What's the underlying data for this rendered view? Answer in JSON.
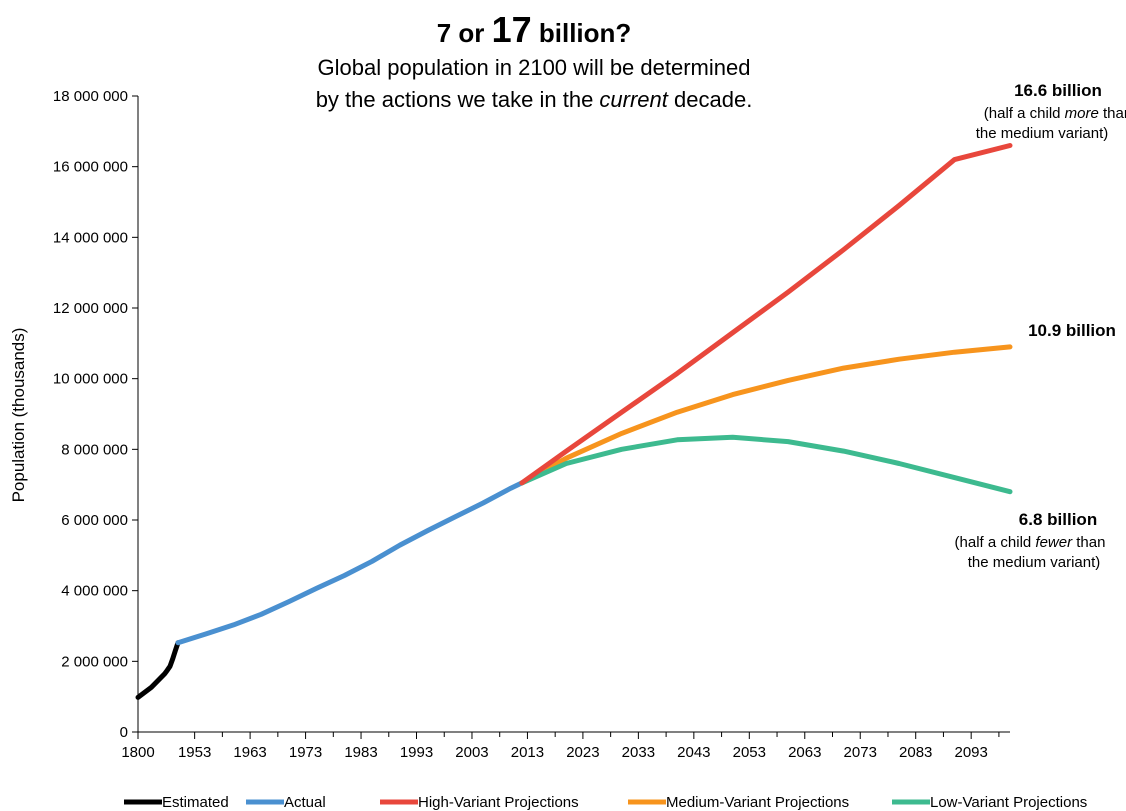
{
  "chart_data": {
    "type": "line",
    "title": {
      "prefix": "7 or ",
      "big": "17",
      "suffix": " billion?"
    },
    "subtitle": {
      "line1": "Global population in 2100 will be determined",
      "line2_pre": "by the actions we take in the ",
      "line2_em": "current",
      "line2_post": " decade."
    },
    "ylabel": "Population (thousands)",
    "xlabel": "",
    "ylim": [
      0,
      18000000
    ],
    "yticks": [
      {
        "value": 0,
        "label": "0"
      },
      {
        "value": 2000000,
        "label": "2 000 000"
      },
      {
        "value": 4000000,
        "label": "4 000 000"
      },
      {
        "value": 6000000,
        "label": "6 000 000"
      },
      {
        "value": 8000000,
        "label": "8 000 000"
      },
      {
        "value": 10000000,
        "label": "10 000 000"
      },
      {
        "value": 12000000,
        "label": "12 000 000"
      },
      {
        "value": 14000000,
        "label": "14 000 000"
      },
      {
        "value": 16000000,
        "label": "16 000 000"
      },
      {
        "value": 18000000,
        "label": "18 000 000"
      }
    ],
    "xtick_labels": [
      "1800",
      "1953",
      "1963",
      "1973",
      "1983",
      "1993",
      "2003",
      "2013",
      "2023",
      "2033",
      "2043",
      "2053",
      "2063",
      "2073",
      "2083",
      "2093"
    ],
    "xtick_years": [
      1800,
      1953,
      1963,
      1973,
      1983,
      1993,
      2003,
      2013,
      2023,
      2033,
      2043,
      2053,
      2063,
      2073,
      2083,
      2093
    ],
    "grid": false,
    "legend_position": "bottom",
    "series": [
      {
        "name": "Estimated",
        "color": "#000000",
        "points": [
          [
            1800,
            978000
          ],
          [
            1850,
            1262000
          ],
          [
            1900,
            1650000
          ],
          [
            1910,
            1750000
          ],
          [
            1920,
            1860000
          ],
          [
            1930,
            2070000
          ],
          [
            1940,
            2300000
          ],
          [
            1950,
            2526000
          ]
        ]
      },
      {
        "name": "Actual",
        "color": "#4a90d0",
        "points": [
          [
            1950,
            2526000
          ],
          [
            1955,
            2773000
          ],
          [
            1960,
            3030000
          ],
          [
            1965,
            3330000
          ],
          [
            1970,
            3690000
          ],
          [
            1975,
            4070000
          ],
          [
            1980,
            4430000
          ],
          [
            1985,
            4830000
          ],
          [
            1990,
            5290000
          ],
          [
            1995,
            5700000
          ],
          [
            2000,
            6090000
          ],
          [
            2005,
            6480000
          ],
          [
            2010,
            6900000
          ],
          [
            2012,
            7050000
          ]
        ]
      },
      {
        "name": "High-Variant Projections",
        "color": "#e8473c",
        "points": [
          [
            2012,
            7050000
          ],
          [
            2020,
            7950000
          ],
          [
            2030,
            9050000
          ],
          [
            2040,
            10150000
          ],
          [
            2050,
            11300000
          ],
          [
            2060,
            12450000
          ],
          [
            2070,
            13650000
          ],
          [
            2080,
            14900000
          ],
          [
            2090,
            16200000
          ],
          [
            2100,
            16600000
          ]
        ]
      },
      {
        "name": "Medium-Variant Projections",
        "color": "#f7941d",
        "points": [
          [
            2012,
            7050000
          ],
          [
            2020,
            7750000
          ],
          [
            2030,
            8450000
          ],
          [
            2040,
            9050000
          ],
          [
            2050,
            9550000
          ],
          [
            2060,
            9950000
          ],
          [
            2070,
            10300000
          ],
          [
            2080,
            10550000
          ],
          [
            2090,
            10750000
          ],
          [
            2100,
            10900000
          ]
        ]
      },
      {
        "name": "Low-Variant Projections",
        "color": "#3dba8f",
        "points": [
          [
            2012,
            7050000
          ],
          [
            2020,
            7600000
          ],
          [
            2030,
            8000000
          ],
          [
            2040,
            8270000
          ],
          [
            2050,
            8340000
          ],
          [
            2060,
            8220000
          ],
          [
            2070,
            7950000
          ],
          [
            2080,
            7600000
          ],
          [
            2090,
            7200000
          ],
          [
            2100,
            6800000
          ]
        ]
      }
    ],
    "annotations": {
      "high": {
        "bold": "16.6 billion",
        "note1_pre": "(half a child ",
        "note1_em": "more",
        "note1_post": " than",
        "note2": "the medium variant)"
      },
      "medium": {
        "bold": "10.9 billion"
      },
      "low": {
        "bold": "6.8 billion",
        "note1_pre": "(half a child ",
        "note1_em": "fewer",
        "note1_post": " than",
        "note2": "the medium variant)"
      }
    }
  }
}
